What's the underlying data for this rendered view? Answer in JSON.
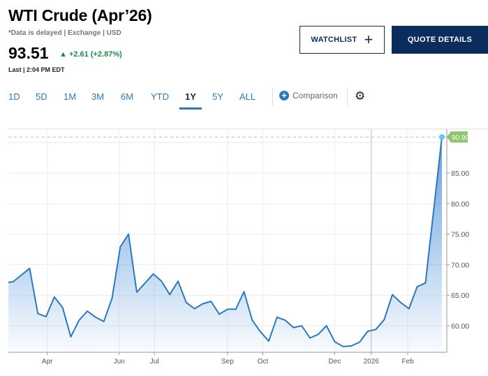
{
  "header": {
    "title": "WTI Crude (Apr’26)",
    "subtitle": "*Data is delayed | Exchange | USD",
    "price": "93.51",
    "change_arrow": "▲",
    "change": "+2.61 (+2.87%)",
    "last": "Last | 2:04 PM EDT"
  },
  "buttons": {
    "watchlist": "WATCHLIST",
    "watchlist_icon": "+",
    "quote_details": "QUOTE DETAILS"
  },
  "ranges": [
    {
      "label": "1D"
    },
    {
      "label": "5D"
    },
    {
      "label": "1M"
    },
    {
      "label": "3M"
    },
    {
      "label": "6M"
    },
    {
      "label": "YTD"
    },
    {
      "label": "1Y",
      "active": true
    },
    {
      "label": "5Y"
    },
    {
      "label": "ALL"
    }
  ],
  "comparison": {
    "icon": "+",
    "label": "Comparison"
  },
  "settings_icon": "⚙",
  "colors": {
    "line": "#2a79c0",
    "up": "#1d8a4d",
    "brand": "#0b2d5e",
    "last_badge": "#8cc56e",
    "dot": "#5bc8f5"
  },
  "chart_data": {
    "type": "area",
    "ylim": [
      55.66,
      92.2
    ],
    "yticks": [
      "60.00",
      "65.00",
      "70.00",
      "75.00",
      "80.00",
      "85.00"
    ],
    "ytick_values": [
      60,
      65,
      70,
      75,
      80,
      85
    ],
    "xticks": [
      {
        "label": "Apr",
        "date": "2025-04-01"
      },
      {
        "label": "Jun",
        "date": "2025-06-01"
      },
      {
        "label": "Jul",
        "date": "2025-07-01"
      },
      {
        "label": "Sep",
        "date": "2025-09-01"
      },
      {
        "label": "Oct",
        "date": "2025-10-01"
      },
      {
        "label": "Dec",
        "date": "2025-12-01"
      },
      {
        "label": "2026",
        "date": "2026-01-01"
      },
      {
        "label": "Feb",
        "date": "2026-02-01"
      }
    ],
    "last_label": "90.90",
    "last_value": 90.9,
    "x": [
      "2025-02-27",
      "2025-03-03",
      "2025-03-17",
      "2025-03-24",
      "2025-03-31",
      "2025-04-07",
      "2025-04-14",
      "2025-04-21",
      "2025-04-28",
      "2025-05-05",
      "2025-05-12",
      "2025-05-19",
      "2025-05-26",
      "2025-06-02",
      "2025-06-09",
      "2025-06-16",
      "2025-06-23",
      "2025-06-30",
      "2025-07-07",
      "2025-07-14",
      "2025-07-21",
      "2025-07-28",
      "2025-08-04",
      "2025-08-11",
      "2025-08-18",
      "2025-08-25",
      "2025-09-01",
      "2025-09-08",
      "2025-09-15",
      "2025-09-22",
      "2025-09-29",
      "2025-10-06",
      "2025-10-13",
      "2025-10-20",
      "2025-10-27",
      "2025-11-03",
      "2025-11-10",
      "2025-11-17",
      "2025-11-24",
      "2025-12-01",
      "2025-12-08",
      "2025-12-15",
      "2025-12-22",
      "2025-12-29",
      "2026-01-05",
      "2026-01-12",
      "2026-01-19",
      "2026-01-26",
      "2026-02-02",
      "2026-02-09",
      "2026-02-16",
      "2026-03-02"
    ],
    "values": [
      67.1,
      67.2,
      69.4,
      62.0,
      61.5,
      64.7,
      63.0,
      58.2,
      60.9,
      62.4,
      61.4,
      60.7,
      64.5,
      72.9,
      75.0,
      65.5,
      67.0,
      68.5,
      67.3,
      65.1,
      67.3,
      63.8,
      62.8,
      63.6,
      64.0,
      61.9,
      62.7,
      62.7,
      65.6,
      60.9,
      59.0,
      57.5,
      61.4,
      60.9,
      59.7,
      60.0,
      58.0,
      58.6,
      60.0,
      57.4,
      56.6,
      56.7,
      57.3,
      59.1,
      59.4,
      61.0,
      65.1,
      63.8,
      62.8,
      66.4,
      67.0,
      90.9
    ],
    "grid": true
  }
}
